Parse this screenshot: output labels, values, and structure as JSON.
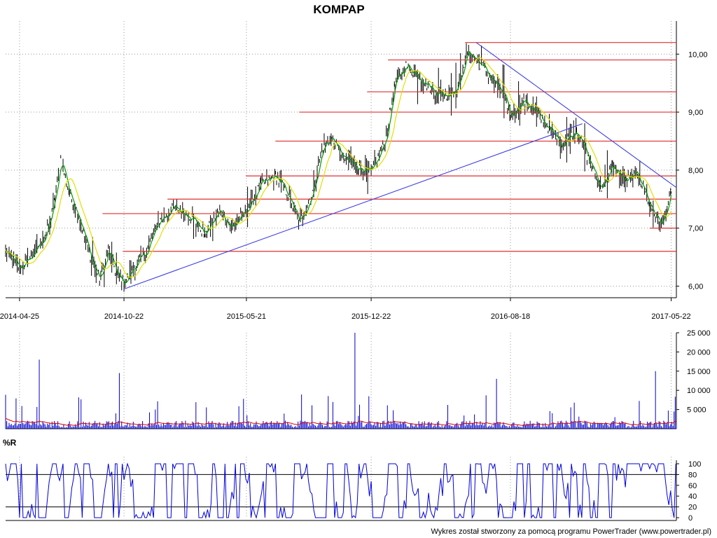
{
  "chart_data": [
    {
      "type": "candlestick",
      "title": "KOMPAP",
      "x_range": [
        "2014-04-01",
        "2017-05-31"
      ],
      "x_tick_labels": [
        "2014-04-25",
        "2014-10-22",
        "2015-05-21",
        "2015-12-22",
        "2016-08-18",
        "2017-05-22"
      ],
      "ylim": [
        5.8,
        10.45
      ],
      "y_ticks": [
        6,
        7,
        8,
        9,
        10
      ],
      "y_tick_labels": [
        "6,00",
        "7,00",
        "8,00",
        "9,00",
        "10,00"
      ],
      "grid": true,
      "price_series": [
        {
          "date": "2014-04-01",
          "close": 6.6
        },
        {
          "date": "2014-04-25",
          "close": 6.3
        },
        {
          "date": "2014-05-15",
          "close": 6.5
        },
        {
          "date": "2014-06-10",
          "close": 6.9
        },
        {
          "date": "2014-06-25",
          "close": 7.5
        },
        {
          "date": "2014-07-05",
          "close": 8.2
        },
        {
          "date": "2014-07-20",
          "close": 7.6
        },
        {
          "date": "2014-08-05",
          "close": 7.2
        },
        {
          "date": "2014-08-25",
          "close": 6.5
        },
        {
          "date": "2014-09-10",
          "close": 6.1
        },
        {
          "date": "2014-09-25",
          "close": 6.6
        },
        {
          "date": "2014-10-10",
          "close": 6.2
        },
        {
          "date": "2014-10-22",
          "close": 6.05
        },
        {
          "date": "2014-11-10",
          "close": 6.35
        },
        {
          "date": "2014-11-30",
          "close": 6.6
        },
        {
          "date": "2014-12-20",
          "close": 7.1
        },
        {
          "date": "2015-01-15",
          "close": 7.35
        },
        {
          "date": "2015-02-15",
          "close": 7.2
        },
        {
          "date": "2015-03-10",
          "close": 6.9
        },
        {
          "date": "2015-04-05",
          "close": 7.3
        },
        {
          "date": "2015-04-25",
          "close": 7.0
        },
        {
          "date": "2015-05-21",
          "close": 7.3
        },
        {
          "date": "2015-06-15",
          "close": 7.75
        },
        {
          "date": "2015-07-10",
          "close": 7.9
        },
        {
          "date": "2015-07-30",
          "close": 7.6
        },
        {
          "date": "2015-08-20",
          "close": 7.1
        },
        {
          "date": "2015-09-10",
          "close": 7.55
        },
        {
          "date": "2015-09-30",
          "close": 8.4
        },
        {
          "date": "2015-10-15",
          "close": 8.55
        },
        {
          "date": "2015-11-05",
          "close": 8.2
        },
        {
          "date": "2015-11-30",
          "close": 8.05
        },
        {
          "date": "2015-12-22",
          "close": 7.95
        },
        {
          "date": "2016-01-15",
          "close": 8.5
        },
        {
          "date": "2016-02-01",
          "close": 9.5
        },
        {
          "date": "2016-02-20",
          "close": 9.8
        },
        {
          "date": "2016-03-15",
          "close": 9.6
        },
        {
          "date": "2016-04-10",
          "close": 9.35
        },
        {
          "date": "2016-04-30",
          "close": 9.3
        },
        {
          "date": "2016-05-20",
          "close": 9.45
        },
        {
          "date": "2016-06-05",
          "close": 10.05
        },
        {
          "date": "2016-06-25",
          "close": 9.85
        },
        {
          "date": "2016-07-15",
          "close": 9.6
        },
        {
          "date": "2016-08-05",
          "close": 9.3
        },
        {
          "date": "2016-08-18",
          "close": 8.95
        },
        {
          "date": "2016-09-10",
          "close": 9.2
        },
        {
          "date": "2016-09-30",
          "close": 9.0
        },
        {
          "date": "2016-10-25",
          "close": 8.7
        },
        {
          "date": "2016-11-15",
          "close": 8.45
        },
        {
          "date": "2016-12-10",
          "close": 8.7
        },
        {
          "date": "2016-12-30",
          "close": 8.2
        },
        {
          "date": "2017-01-20",
          "close": 7.7
        },
        {
          "date": "2017-02-10",
          "close": 8.05
        },
        {
          "date": "2017-03-05",
          "close": 7.8
        },
        {
          "date": "2017-03-25",
          "close": 7.95
        },
        {
          "date": "2017-04-15",
          "close": 7.4
        },
        {
          "date": "2017-05-05",
          "close": 7.05
        },
        {
          "date": "2017-05-22",
          "close": 7.6
        }
      ],
      "horizontal_levels": [
        {
          "value": 10.2,
          "from": "2016-06-01",
          "to": "2017-05-31"
        },
        {
          "value": 9.9,
          "from": "2016-01-20",
          "to": "2017-05-31"
        },
        {
          "value": 9.35,
          "from": "2015-12-15",
          "to": "2017-05-31"
        },
        {
          "value": 9.0,
          "from": "2015-08-20",
          "to": "2017-05-31"
        },
        {
          "value": 8.5,
          "from": "2015-07-10",
          "to": "2017-05-31"
        },
        {
          "value": 7.9,
          "from": "2015-05-20",
          "to": "2017-05-31"
        },
        {
          "value": 7.5,
          "from": "2015-01-05",
          "to": "2017-05-31"
        },
        {
          "value": 7.25,
          "from": "2014-09-15",
          "to": "2017-05-31"
        },
        {
          "value": 7.0,
          "from": "2017-04-15",
          "to": "2017-05-31"
        },
        {
          "value": 6.6,
          "from": "2014-10-20",
          "to": "2017-05-31"
        }
      ],
      "trend_lines": [
        {
          "from": {
            "date": "2014-10-22",
            "value": 5.95
          },
          "to": {
            "date": "2016-12-20",
            "value": 8.8
          }
        },
        {
          "from": {
            "date": "2016-06-20",
            "value": 10.2
          },
          "to": {
            "date": "2017-05-31",
            "value": 7.7
          }
        }
      ]
    },
    {
      "type": "bar",
      "x_range": [
        "2014-04-01",
        "2017-05-31"
      ],
      "ylim": [
        0,
        25000
      ],
      "y_ticks": [
        5000,
        10000,
        15000,
        20000,
        25000
      ],
      "y_tick_labels": [
        "5 000",
        "10 000",
        "15 000",
        "20 000",
        "25 000"
      ],
      "spikes": [
        {
          "date": "2014-05-30",
          "value": 18000
        },
        {
          "date": "2014-10-15",
          "value": 14500
        },
        {
          "date": "2015-10-10",
          "value": 8500
        },
        {
          "date": "2015-11-25",
          "value": 25000
        },
        {
          "date": "2016-07-25",
          "value": 13000
        },
        {
          "date": "2017-04-25",
          "value": 15000
        }
      ]
    },
    {
      "type": "line",
      "ylim": [
        0,
        100
      ],
      "y_ticks": [
        0,
        20,
        40,
        60,
        80,
        100
      ],
      "y_tick_labels": [
        "0",
        "20",
        "40",
        "60",
        "80",
        "100"
      ],
      "reference_levels": [
        20,
        80
      ]
    }
  ],
  "indicator_label": "%R",
  "footer": "Wykres został stworzony za pomocą programu PowerTrader (www.powertrader.pl)",
  "colors": {
    "bars": "#000000",
    "ma_fast": "#009900",
    "ma_slow": "#e0e000",
    "levels": "#e03030",
    "trend": "#4040e0",
    "volume": "#0000cc",
    "volume_avg": "#dd0000",
    "williams": "#0000dd"
  }
}
